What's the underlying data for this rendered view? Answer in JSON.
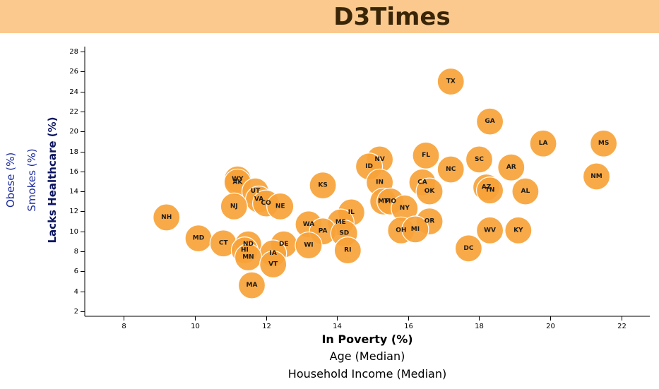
{
  "header": {
    "title": "D3Times"
  },
  "chart_data": {
    "type": "scatter",
    "xlabel": "In Poverty (%)",
    "ylabel": "Lacks Healthcare (%)",
    "x_axis_options": [
      "In Poverty (%)",
      "Age (Median)",
      "Household Income (Median)"
    ],
    "y_axis_options": [
      "Lacks Healthcare (%)",
      "Smokes (%)",
      "Obese (%)"
    ],
    "active_x": "In Poverty (%)",
    "active_y": "Lacks Healthcare (%)",
    "xlim": [
      6.9,
      22.8
    ],
    "ylim": [
      1.5,
      28.5
    ],
    "x_ticks": [
      8,
      10,
      12,
      14,
      16,
      18,
      20,
      22
    ],
    "y_ticks": [
      2,
      4,
      6,
      8,
      10,
      12,
      14,
      16,
      18,
      20,
      22,
      24,
      26,
      28
    ],
    "grid": false,
    "marker_color": "#f7a33a",
    "points": [
      {
        "label": "TX",
        "x": 17.2,
        "y": 25.0
      },
      {
        "label": "GA",
        "x": 18.3,
        "y": 21.0
      },
      {
        "label": "LA",
        "x": 19.8,
        "y": 18.8
      },
      {
        "label": "MS",
        "x": 21.5,
        "y": 18.8
      },
      {
        "label": "NM",
        "x": 21.3,
        "y": 15.5
      },
      {
        "label": "FL",
        "x": 16.5,
        "y": 17.6
      },
      {
        "label": "NV",
        "x": 15.2,
        "y": 17.2
      },
      {
        "label": "SC",
        "x": 18.0,
        "y": 17.2
      },
      {
        "label": "ID",
        "x": 14.9,
        "y": 16.5
      },
      {
        "label": "AR",
        "x": 18.9,
        "y": 16.4
      },
      {
        "label": "NC",
        "x": 17.2,
        "y": 16.2
      },
      {
        "label": "CA",
        "x": 16.4,
        "y": 14.9
      },
      {
        "label": "IN",
        "x": 15.2,
        "y": 14.9
      },
      {
        "label": "KS",
        "x": 13.6,
        "y": 14.6
      },
      {
        "label": "AZ",
        "x": 18.2,
        "y": 14.4
      },
      {
        "label": "TN",
        "x": 18.3,
        "y": 14.1
      },
      {
        "label": "OK",
        "x": 16.6,
        "y": 14.0
      },
      {
        "label": "AL",
        "x": 19.3,
        "y": 14.0
      },
      {
        "label": "WY",
        "x": 11.2,
        "y": 15.2
      },
      {
        "label": "AK",
        "x": 11.2,
        "y": 14.9
      },
      {
        "label": "UT",
        "x": 11.7,
        "y": 14.0
      },
      {
        "label": "VA",
        "x": 11.8,
        "y": 13.2
      },
      {
        "label": "CO",
        "x": 12.0,
        "y": 12.8
      },
      {
        "label": "NE",
        "x": 12.4,
        "y": 12.5
      },
      {
        "label": "NJ",
        "x": 11.1,
        "y": 12.5
      },
      {
        "label": "MT",
        "x": 15.3,
        "y": 13.0
      },
      {
        "label": "MO",
        "x": 15.5,
        "y": 13.0
      },
      {
        "label": "NY",
        "x": 15.9,
        "y": 12.3
      },
      {
        "label": "IL",
        "x": 14.4,
        "y": 11.9
      },
      {
        "label": "NH",
        "x": 9.2,
        "y": 11.4
      },
      {
        "label": "ME",
        "x": 14.1,
        "y": 10.9
      },
      {
        "label": "OR",
        "x": 16.6,
        "y": 11.0
      },
      {
        "label": "WA",
        "x": 13.2,
        "y": 10.7
      },
      {
        "label": "PA",
        "x": 13.6,
        "y": 10.0
      },
      {
        "label": "SD",
        "x": 14.2,
        "y": 9.8
      },
      {
        "label": "OH",
        "x": 15.8,
        "y": 10.1
      },
      {
        "label": "MI",
        "x": 16.2,
        "y": 10.2
      },
      {
        "label": "WV",
        "x": 18.3,
        "y": 10.1
      },
      {
        "label": "KY",
        "x": 19.1,
        "y": 10.1
      },
      {
        "label": "MD",
        "x": 10.1,
        "y": 9.3
      },
      {
        "label": "CT",
        "x": 10.8,
        "y": 8.8
      },
      {
        "label": "ND",
        "x": 11.5,
        "y": 8.7
      },
      {
        "label": "DE",
        "x": 12.5,
        "y": 8.7
      },
      {
        "label": "WI",
        "x": 13.2,
        "y": 8.6
      },
      {
        "label": "HI",
        "x": 11.4,
        "y": 8.1
      },
      {
        "label": "RI",
        "x": 14.3,
        "y": 8.1
      },
      {
        "label": "DC",
        "x": 17.7,
        "y": 8.3
      },
      {
        "label": "IA",
        "x": 12.2,
        "y": 7.8
      },
      {
        "label": "MN",
        "x": 11.5,
        "y": 7.4
      },
      {
        "label": "VT",
        "x": 12.2,
        "y": 6.7
      },
      {
        "label": "MA",
        "x": 11.6,
        "y": 4.6
      }
    ]
  }
}
